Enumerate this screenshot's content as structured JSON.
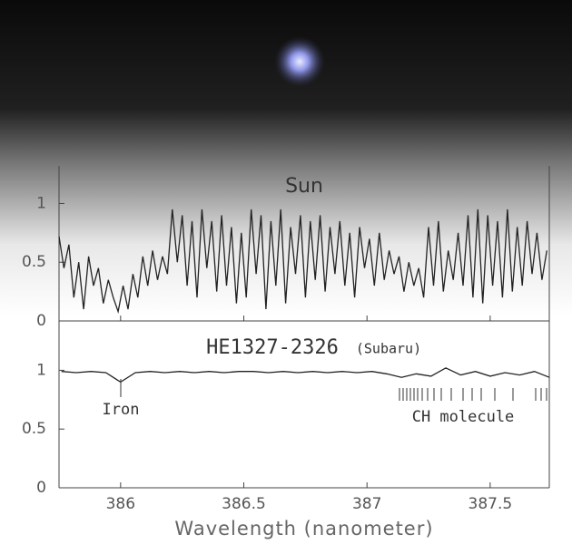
{
  "chart_data": [
    {
      "type": "line",
      "title": "Sun",
      "x": [
        385.75,
        385.77,
        385.79,
        385.81,
        385.83,
        385.85,
        385.87,
        385.89,
        385.91,
        385.93,
        385.95,
        385.97,
        385.99,
        386.01,
        386.03,
        386.05,
        386.07,
        386.09,
        386.11,
        386.13,
        386.15,
        386.17,
        386.19,
        386.21,
        386.23,
        386.25,
        386.27,
        386.29,
        386.31,
        386.33,
        386.35,
        386.37,
        386.39,
        386.41,
        386.43,
        386.45,
        386.47,
        386.49,
        386.51,
        386.53,
        386.55,
        386.57,
        386.59,
        386.61,
        386.63,
        386.65,
        386.67,
        386.69,
        386.71,
        386.73,
        386.75,
        386.77,
        386.79,
        386.81,
        386.83,
        386.85,
        386.87,
        386.89,
        386.91,
        386.93,
        386.95,
        386.97,
        386.99,
        387.01,
        387.03,
        387.05,
        387.07,
        387.09,
        387.11,
        387.13,
        387.15,
        387.17,
        387.19,
        387.21,
        387.23,
        387.25,
        387.27,
        387.29,
        387.31,
        387.33,
        387.35,
        387.37,
        387.39,
        387.41,
        387.43,
        387.45,
        387.47,
        387.49,
        387.51,
        387.53,
        387.55,
        387.57,
        387.59,
        387.61,
        387.63,
        387.65,
        387.67,
        387.69,
        387.71,
        387.73
      ],
      "series": [
        {
          "color": "#222222",
          "values": [
            0.72,
            0.45,
            0.65,
            0.2,
            0.5,
            0.1,
            0.55,
            0.3,
            0.45,
            0.15,
            0.35,
            0.2,
            0.08,
            0.3,
            0.1,
            0.4,
            0.2,
            0.55,
            0.3,
            0.6,
            0.35,
            0.55,
            0.4,
            0.95,
            0.5,
            0.9,
            0.3,
            0.85,
            0.2,
            0.95,
            0.45,
            0.85,
            0.25,
            0.9,
            0.3,
            0.8,
            0.15,
            0.75,
            0.2,
            0.95,
            0.4,
            0.9,
            0.1,
            0.85,
            0.3,
            0.95,
            0.15,
            0.8,
            0.4,
            0.9,
            0.2,
            0.85,
            0.35,
            0.9,
            0.25,
            0.8,
            0.4,
            0.85,
            0.3,
            0.75,
            0.2,
            0.8,
            0.45,
            0.7,
            0.3,
            0.75,
            0.35,
            0.6,
            0.4,
            0.55,
            0.25,
            0.5,
            0.3,
            0.45,
            0.2,
            0.8,
            0.3,
            0.85,
            0.25,
            0.6,
            0.35,
            0.75,
            0.3,
            0.9,
            0.2,
            0.95,
            0.15,
            0.9,
            0.3,
            0.85,
            0.2,
            0.95,
            0.25,
            0.8,
            0.3,
            0.85,
            0.4,
            0.75,
            0.35,
            0.6
          ]
        }
      ],
      "xlim": [
        385.75,
        387.74
      ],
      "ylim": [
        0,
        1.32
      ],
      "yticks": [
        0,
        0.5,
        1
      ]
    },
    {
      "type": "line",
      "title": "HE1327-2326",
      "subtitle": "(Subaru)",
      "annotations": [
        "Iron",
        "CH molecule"
      ],
      "xlabel": "Wavelength (nanometer)",
      "x": [
        385.76,
        385.82,
        385.88,
        385.94,
        386.0,
        386.06,
        386.12,
        386.18,
        386.24,
        386.3,
        386.36,
        386.42,
        386.48,
        386.54,
        386.6,
        386.66,
        386.72,
        386.78,
        386.84,
        386.9,
        386.96,
        387.02,
        387.08,
        387.14,
        387.2,
        387.26,
        387.32,
        387.38,
        387.44,
        387.5,
        387.56,
        387.62,
        387.68,
        387.74
      ],
      "series": [
        {
          "color": "#222222",
          "values": [
            0.99,
            0.98,
            0.99,
            0.98,
            0.9,
            0.98,
            0.99,
            0.98,
            0.99,
            0.98,
            0.99,
            0.98,
            0.99,
            0.99,
            0.98,
            0.99,
            0.98,
            0.99,
            0.98,
            0.99,
            0.98,
            0.99,
            0.97,
            0.94,
            0.97,
            0.95,
            1.02,
            0.96,
            0.99,
            0.95,
            0.98,
            0.96,
            0.99,
            0.94
          ]
        }
      ],
      "xlim": [
        385.75,
        387.74
      ],
      "ylim": [
        0,
        1.42
      ],
      "yticks": [
        0,
        0.5,
        1
      ],
      "xticks": [
        386,
        386.5,
        387,
        387.5
      ]
    }
  ]
}
